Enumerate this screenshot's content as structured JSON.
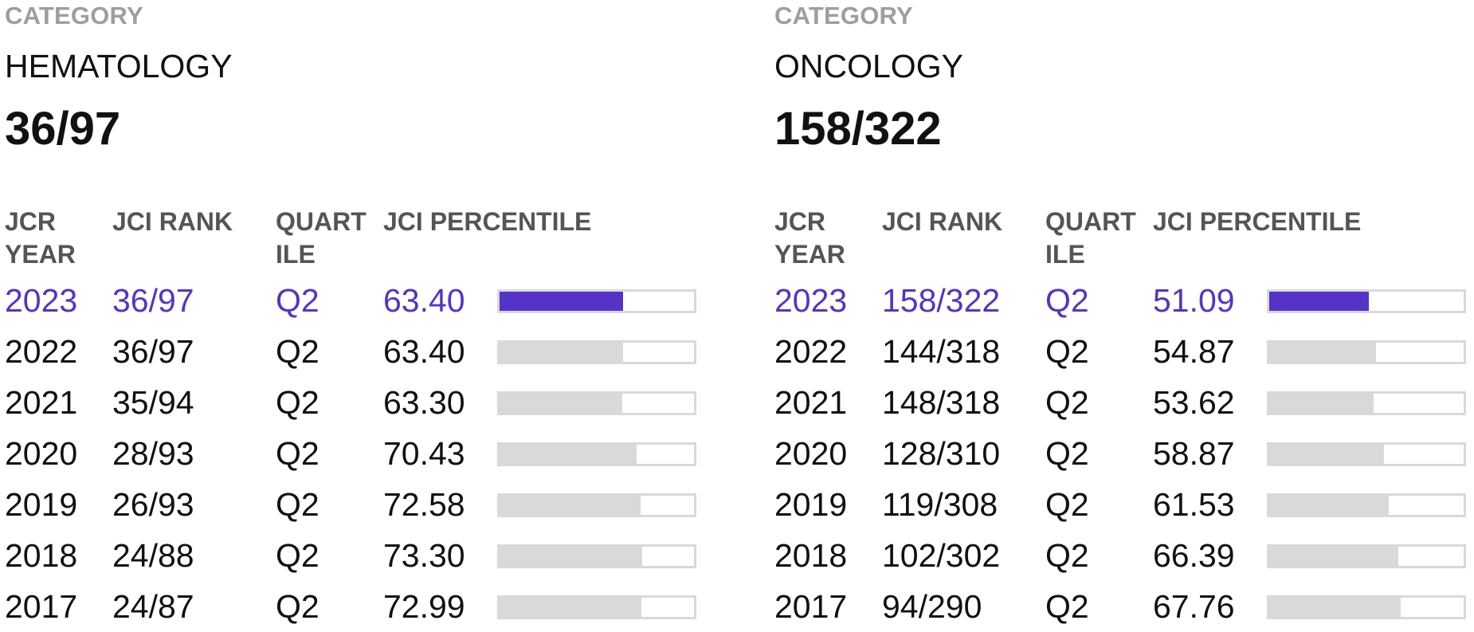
{
  "panels": [
    {
      "category_label": "CATEGORY",
      "category_name": "HEMATOLOGY",
      "rank": "36/97",
      "headers": {
        "year": [
          "JCR",
          "YEAR"
        ],
        "rank": "JCI RANK",
        "quartile": [
          "QUART",
          "ILE"
        ],
        "percentile": "JCI PERCENTILE"
      },
      "rows": [
        {
          "year": "2023",
          "rank": "36/97",
          "quartile": "Q2",
          "percentile": "63.40",
          "current": true
        },
        {
          "year": "2022",
          "rank": "36/97",
          "quartile": "Q2",
          "percentile": "63.40",
          "current": false
        },
        {
          "year": "2021",
          "rank": "35/94",
          "quartile": "Q2",
          "percentile": "63.30",
          "current": false
        },
        {
          "year": "2020",
          "rank": "28/93",
          "quartile": "Q2",
          "percentile": "70.43",
          "current": false
        },
        {
          "year": "2019",
          "rank": "26/93",
          "quartile": "Q2",
          "percentile": "72.58",
          "current": false
        },
        {
          "year": "2018",
          "rank": "24/88",
          "quartile": "Q2",
          "percentile": "73.30",
          "current": false
        },
        {
          "year": "2017",
          "rank": "24/87",
          "quartile": "Q2",
          "percentile": "72.99",
          "current": false
        }
      ]
    },
    {
      "category_label": "CATEGORY",
      "category_name": "ONCOLOGY",
      "rank": "158/322",
      "headers": {
        "year": [
          "JCR",
          "YEAR"
        ],
        "rank": "JCI RANK",
        "quartile": [
          "QUART",
          "ILE"
        ],
        "percentile": "JCI PERCENTILE"
      },
      "rows": [
        {
          "year": "2023",
          "rank": "158/322",
          "quartile": "Q2",
          "percentile": "51.09",
          "current": true
        },
        {
          "year": "2022",
          "rank": "144/318",
          "quartile": "Q2",
          "percentile": "54.87",
          "current": false
        },
        {
          "year": "2021",
          "rank": "148/318",
          "quartile": "Q2",
          "percentile": "53.62",
          "current": false
        },
        {
          "year": "2020",
          "rank": "128/310",
          "quartile": "Q2",
          "percentile": "58.87",
          "current": false
        },
        {
          "year": "2019",
          "rank": "119/308",
          "quartile": "Q2",
          "percentile": "61.53",
          "current": false
        },
        {
          "year": "2018",
          "rank": "102/302",
          "quartile": "Q2",
          "percentile": "66.39",
          "current": false
        },
        {
          "year": "2017",
          "rank": "94/290",
          "quartile": "Q2",
          "percentile": "67.76",
          "current": false
        }
      ]
    }
  ],
  "colors": {
    "accent": "#5533c9",
    "bar_track": "#d9d9d9",
    "label_gray": "#9e9e9e",
    "header_gray": "#555555"
  }
}
